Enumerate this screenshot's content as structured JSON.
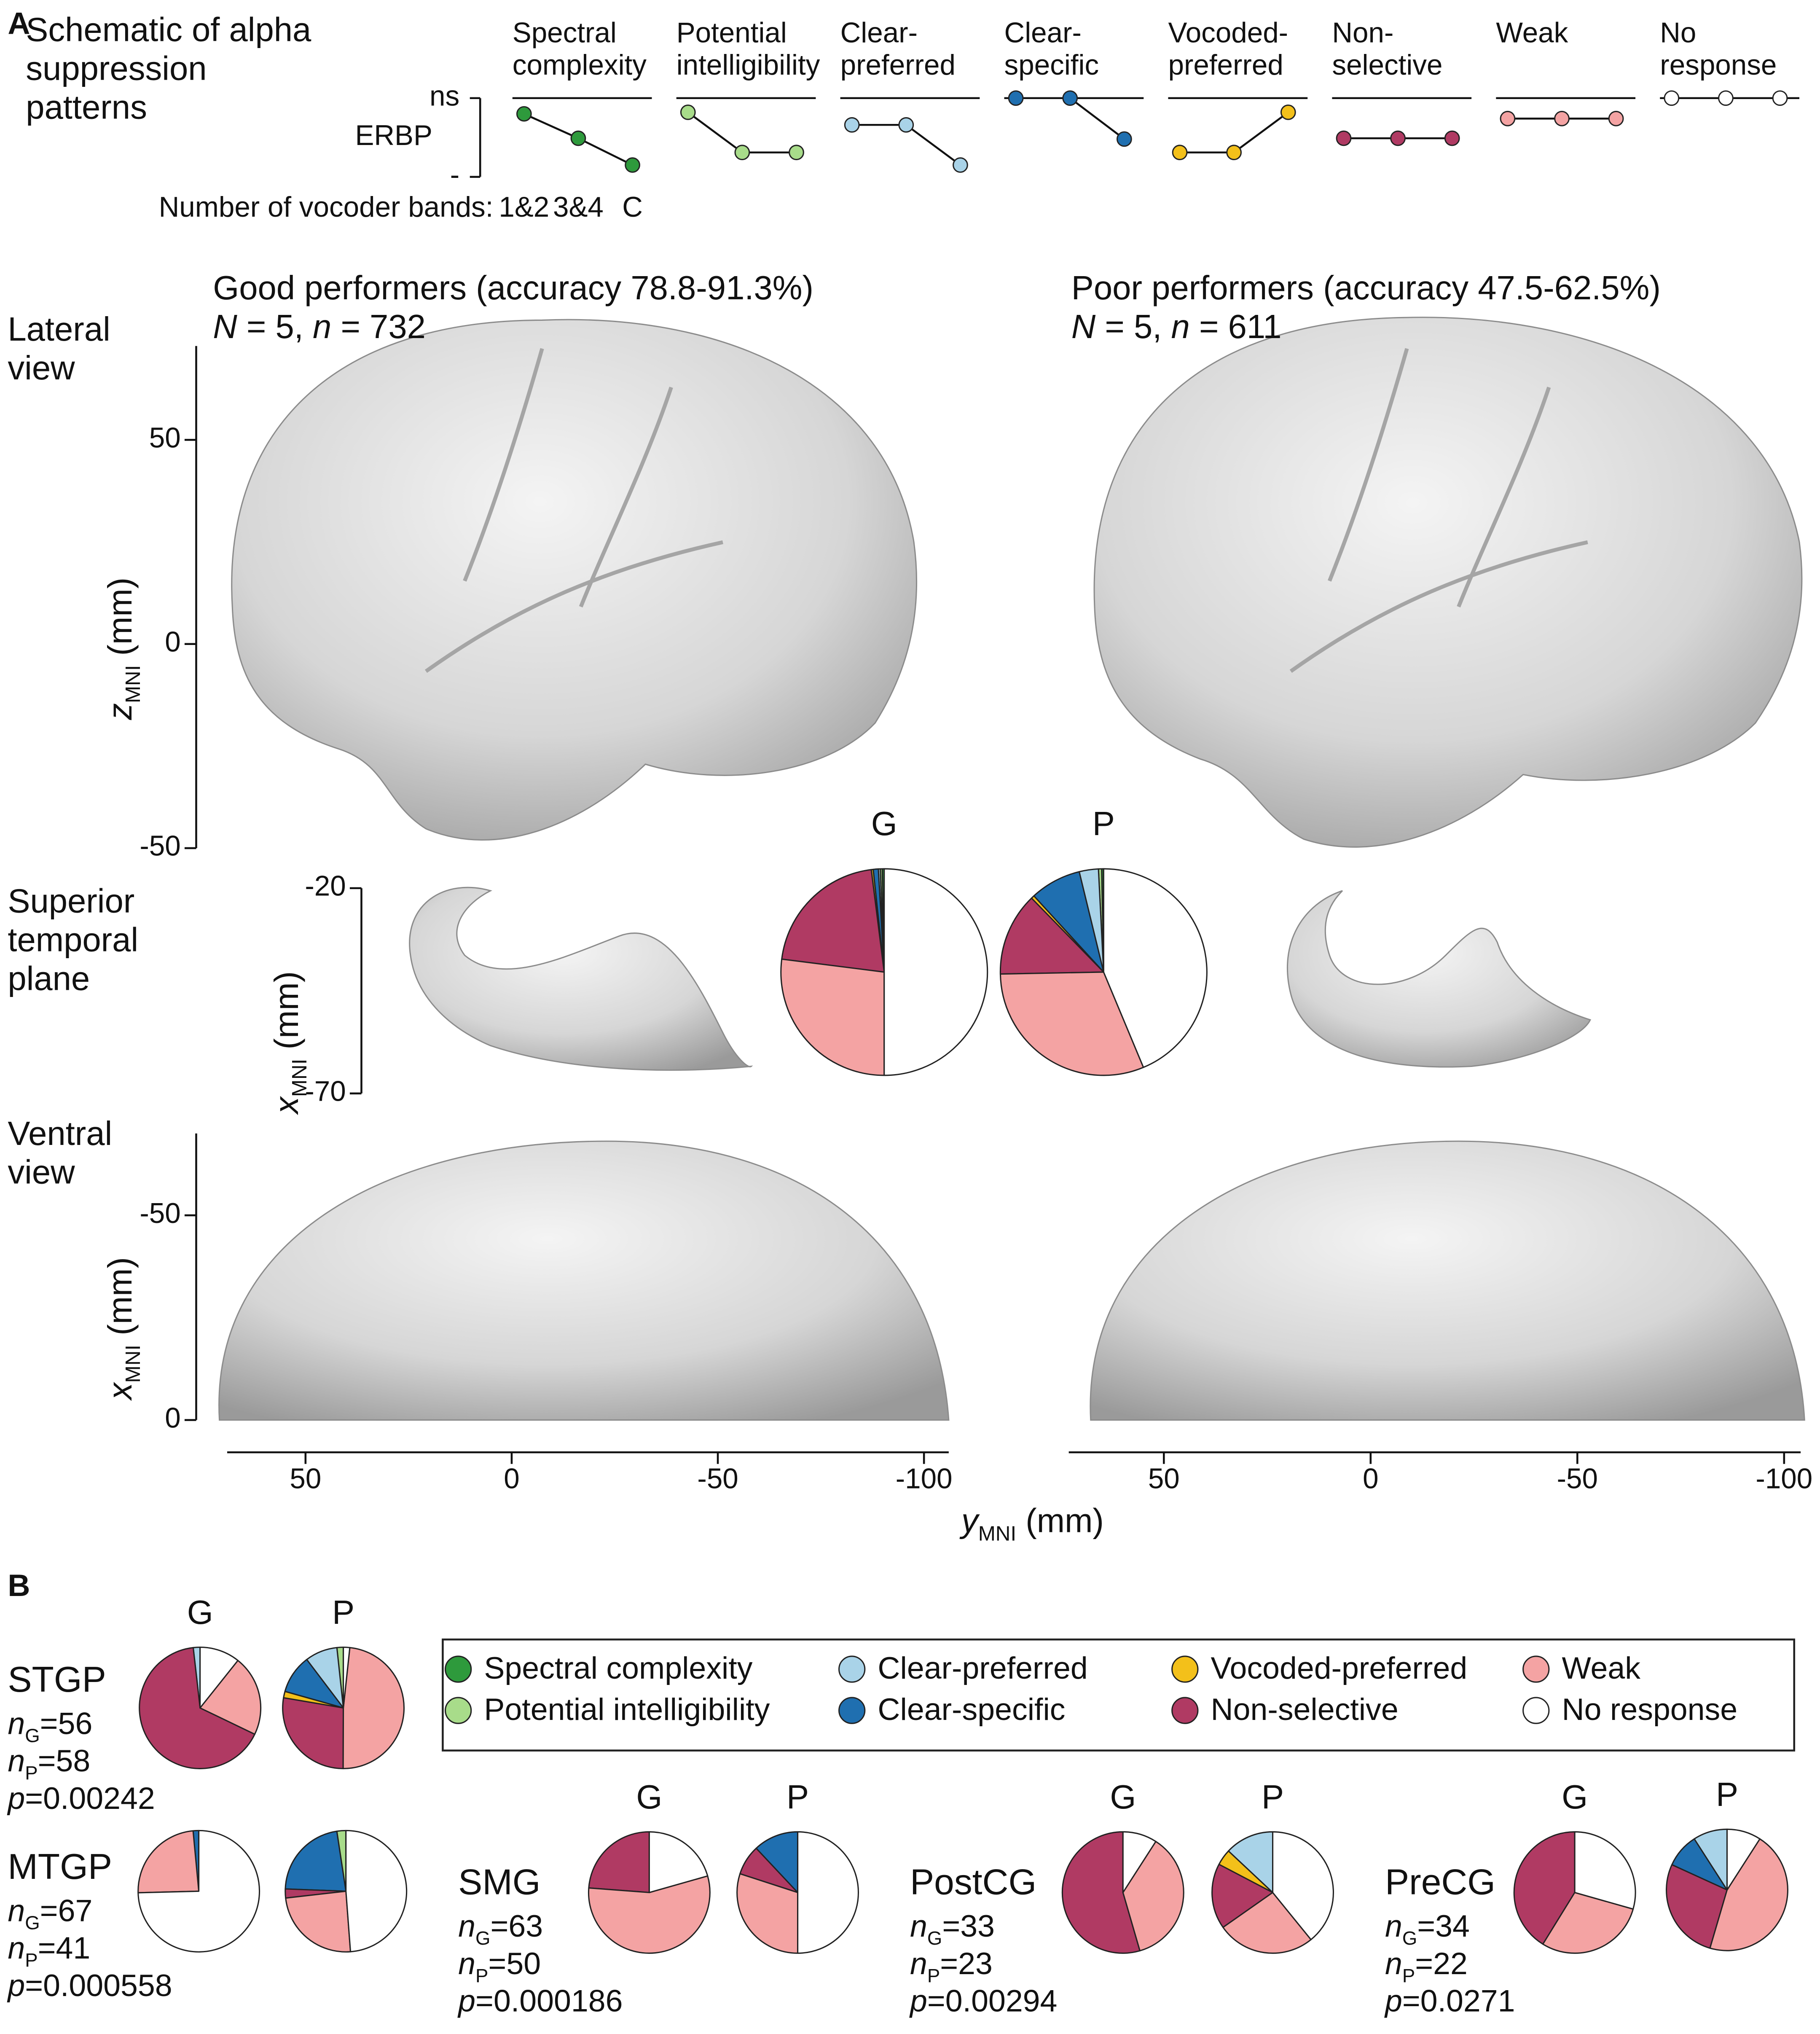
{
  "panel_a": {
    "label": "A"
  },
  "panel_b": {
    "label": "B"
  },
  "chart_data": [
    {
      "type": "schematic",
      "title": "Schematic of alpha suppression patterns",
      "x_label": "Number of vocoder bands:",
      "categories": [
        "1&2",
        "3&4",
        "C"
      ],
      "y_label": "ERBP",
      "ylim": [
        0,
        1
      ],
      "yticks": [
        {
          "value": 1,
          "label": "ns"
        },
        {
          "value": 0,
          "label": "-"
        }
      ],
      "series": [
        {
          "name": "Spectral complexity",
          "color": "#2e9a3c",
          "values": [
            0.8,
            0.49,
            0.15
          ]
        },
        {
          "name": "Potential intelligibility",
          "color": "#a8dc8a",
          "values": [
            0.82,
            0.31,
            0.31
          ]
        },
        {
          "name": "Clear-preferred",
          "color": "#a9d3e8",
          "values": [
            0.66,
            0.66,
            0.15
          ]
        },
        {
          "name": "Clear-specific",
          "color": "#1f6fb0",
          "values": [
            1,
            1,
            0.48
          ]
        },
        {
          "name": "Vocoded-preferred",
          "color": "#f3c01a",
          "values": [
            0.31,
            0.31,
            0.82
          ]
        },
        {
          "name": "Non-selective",
          "color": "#b03a63",
          "values": [
            0.49,
            0.49,
            0.49
          ]
        },
        {
          "name": "Weak",
          "color": "#f4a3a3",
          "values": [
            0.74,
            0.74,
            0.74
          ]
        },
        {
          "name": "No response",
          "color": "#ffffff",
          "values": [
            1,
            1,
            1
          ]
        }
      ]
    },
    {
      "type": "brain",
      "groups": [
        {
          "title": "Good performers (accuracy 78.8-91.3%)",
          "subtitle": [
            {
              "symbol": "N",
              "text": " = 5, "
            },
            {
              "symbol": "n",
              "text": " = 732"
            }
          ],
          "xlim": [
            69,
            -106
          ]
        },
        {
          "title": "Poor performers (accuracy 47.5-62.5%)",
          "subtitle": [
            {
              "symbol": "N",
              "text": " = 5, "
            },
            {
              "symbol": "n",
              "text": " = 611"
            }
          ],
          "xlim": [
            73,
            -104
          ]
        }
      ],
      "xticks": [
        50,
        0,
        -50,
        -100
      ],
      "x_label": {
        "symbol": "y",
        "subscript": "MNI",
        "unit": " (mm)"
      },
      "views": [
        {
          "name": "Lateral view",
          "y_label": {
            "symbol": "z",
            "subscript": "MNI",
            "unit": " (mm)"
          },
          "ylim": [
            -50,
            73
          ],
          "yticks": [
            50,
            0,
            -50
          ]
        },
        {
          "name": "Superior temporal plane",
          "y_label": {
            "symbol": "x",
            "subscript": "MNI",
            "unit": " (mm)"
          },
          "ylim": [
            -70,
            -20
          ],
          "yticks": [
            -20,
            -70
          ]
        },
        {
          "name": "Ventral view",
          "y_label": {
            "symbol": "x",
            "subscript": "MNI",
            "unit": " (mm)"
          },
          "ylim": [
            0,
            -70
          ],
          "yticks": [
            -50,
            0
          ]
        }
      ]
    },
    {
      "type": "pie",
      "pies": [
        {
          "label": "G",
          "values": [
            0.3,
            0.3,
            0.3,
            0.8,
            0.3,
            21,
            27,
            50
          ]
        },
        {
          "label": "P",
          "values": [
            0.3,
            0.5,
            3,
            8,
            0.5,
            13,
            31,
            43.7
          ]
        }
      ]
    },
    {
      "type": "pie-regions",
      "regions": [
        {
          "name": "STGP",
          "stats": [
            {
              "symbol": "n",
              "subscript": "G",
              "text": "=56"
            },
            {
              "symbol": "n",
              "subscript": "P",
              "text": "=58"
            },
            {
              "symbol": "p",
              "text": "=0.00242"
            }
          ],
          "pies": [
            {
              "label": "G",
              "values": [
                0,
                0,
                1.8,
                0,
                0,
                66,
                21.4,
                10.7
              ]
            },
            {
              "label": "P",
              "values": [
                0,
                1.7,
                8.6,
                10.3,
                1.7,
                27.6,
                48.3,
                1.7
              ]
            }
          ]
        },
        {
          "name": "MTGP",
          "stats": [
            {
              "symbol": "n",
              "subscript": "G",
              "text": "=67"
            },
            {
              "symbol": "n",
              "subscript": "P",
              "text": "=41"
            },
            {
              "symbol": "p",
              "text": "=0.000558"
            }
          ],
          "pies": [
            {
              "label": null,
              "values": [
                0,
                0,
                0,
                1.5,
                0,
                0,
                23.9,
                74.6
              ]
            },
            {
              "label": null,
              "values": [
                0,
                2.4,
                0,
                22,
                0,
                2.4,
                24.4,
                48.8
              ]
            }
          ]
        },
        {
          "name": "SMG",
          "stats": [
            {
              "symbol": "n",
              "subscript": "G",
              "text": "=63"
            },
            {
              "symbol": "n",
              "subscript": "P",
              "text": "=50"
            },
            {
              "symbol": "p",
              "text": "=0.000186"
            }
          ],
          "pies": [
            {
              "label": "G",
              "values": [
                0,
                0,
                0,
                0,
                0,
                23.8,
                55.6,
                20.6
              ]
            },
            {
              "label": "P",
              "values": [
                0,
                0,
                0,
                12,
                0,
                8,
                30,
                50
              ]
            }
          ]
        },
        {
          "name": "PostCG",
          "stats": [
            {
              "symbol": "n",
              "subscript": "G",
              "text": "=33"
            },
            {
              "symbol": "n",
              "subscript": "P",
              "text": "=23"
            },
            {
              "symbol": "p",
              "text": "=0.00294"
            }
          ],
          "pies": [
            {
              "label": "G",
              "values": [
                0,
                0,
                0,
                0,
                0,
                54.5,
                36.4,
                9.1
              ]
            },
            {
              "label": "P",
              "values": [
                0,
                0,
                13,
                0,
                4.3,
                17.4,
                26.1,
                39.1
              ]
            }
          ]
        },
        {
          "name": "PreCG",
          "stats": [
            {
              "symbol": "n",
              "subscript": "G",
              "text": "=34"
            },
            {
              "symbol": "n",
              "subscript": "P",
              "text": "=22"
            },
            {
              "symbol": "p",
              "text": "=0.0271"
            }
          ],
          "pies": [
            {
              "label": "G",
              "values": [
                0,
                0,
                0,
                0,
                0,
                41.2,
                29.4,
                29.4
              ]
            },
            {
              "label": "P",
              "values": [
                0,
                0,
                9.1,
                9.1,
                0,
                27.3,
                45.5,
                9.1
              ]
            }
          ]
        }
      ]
    }
  ]
}
